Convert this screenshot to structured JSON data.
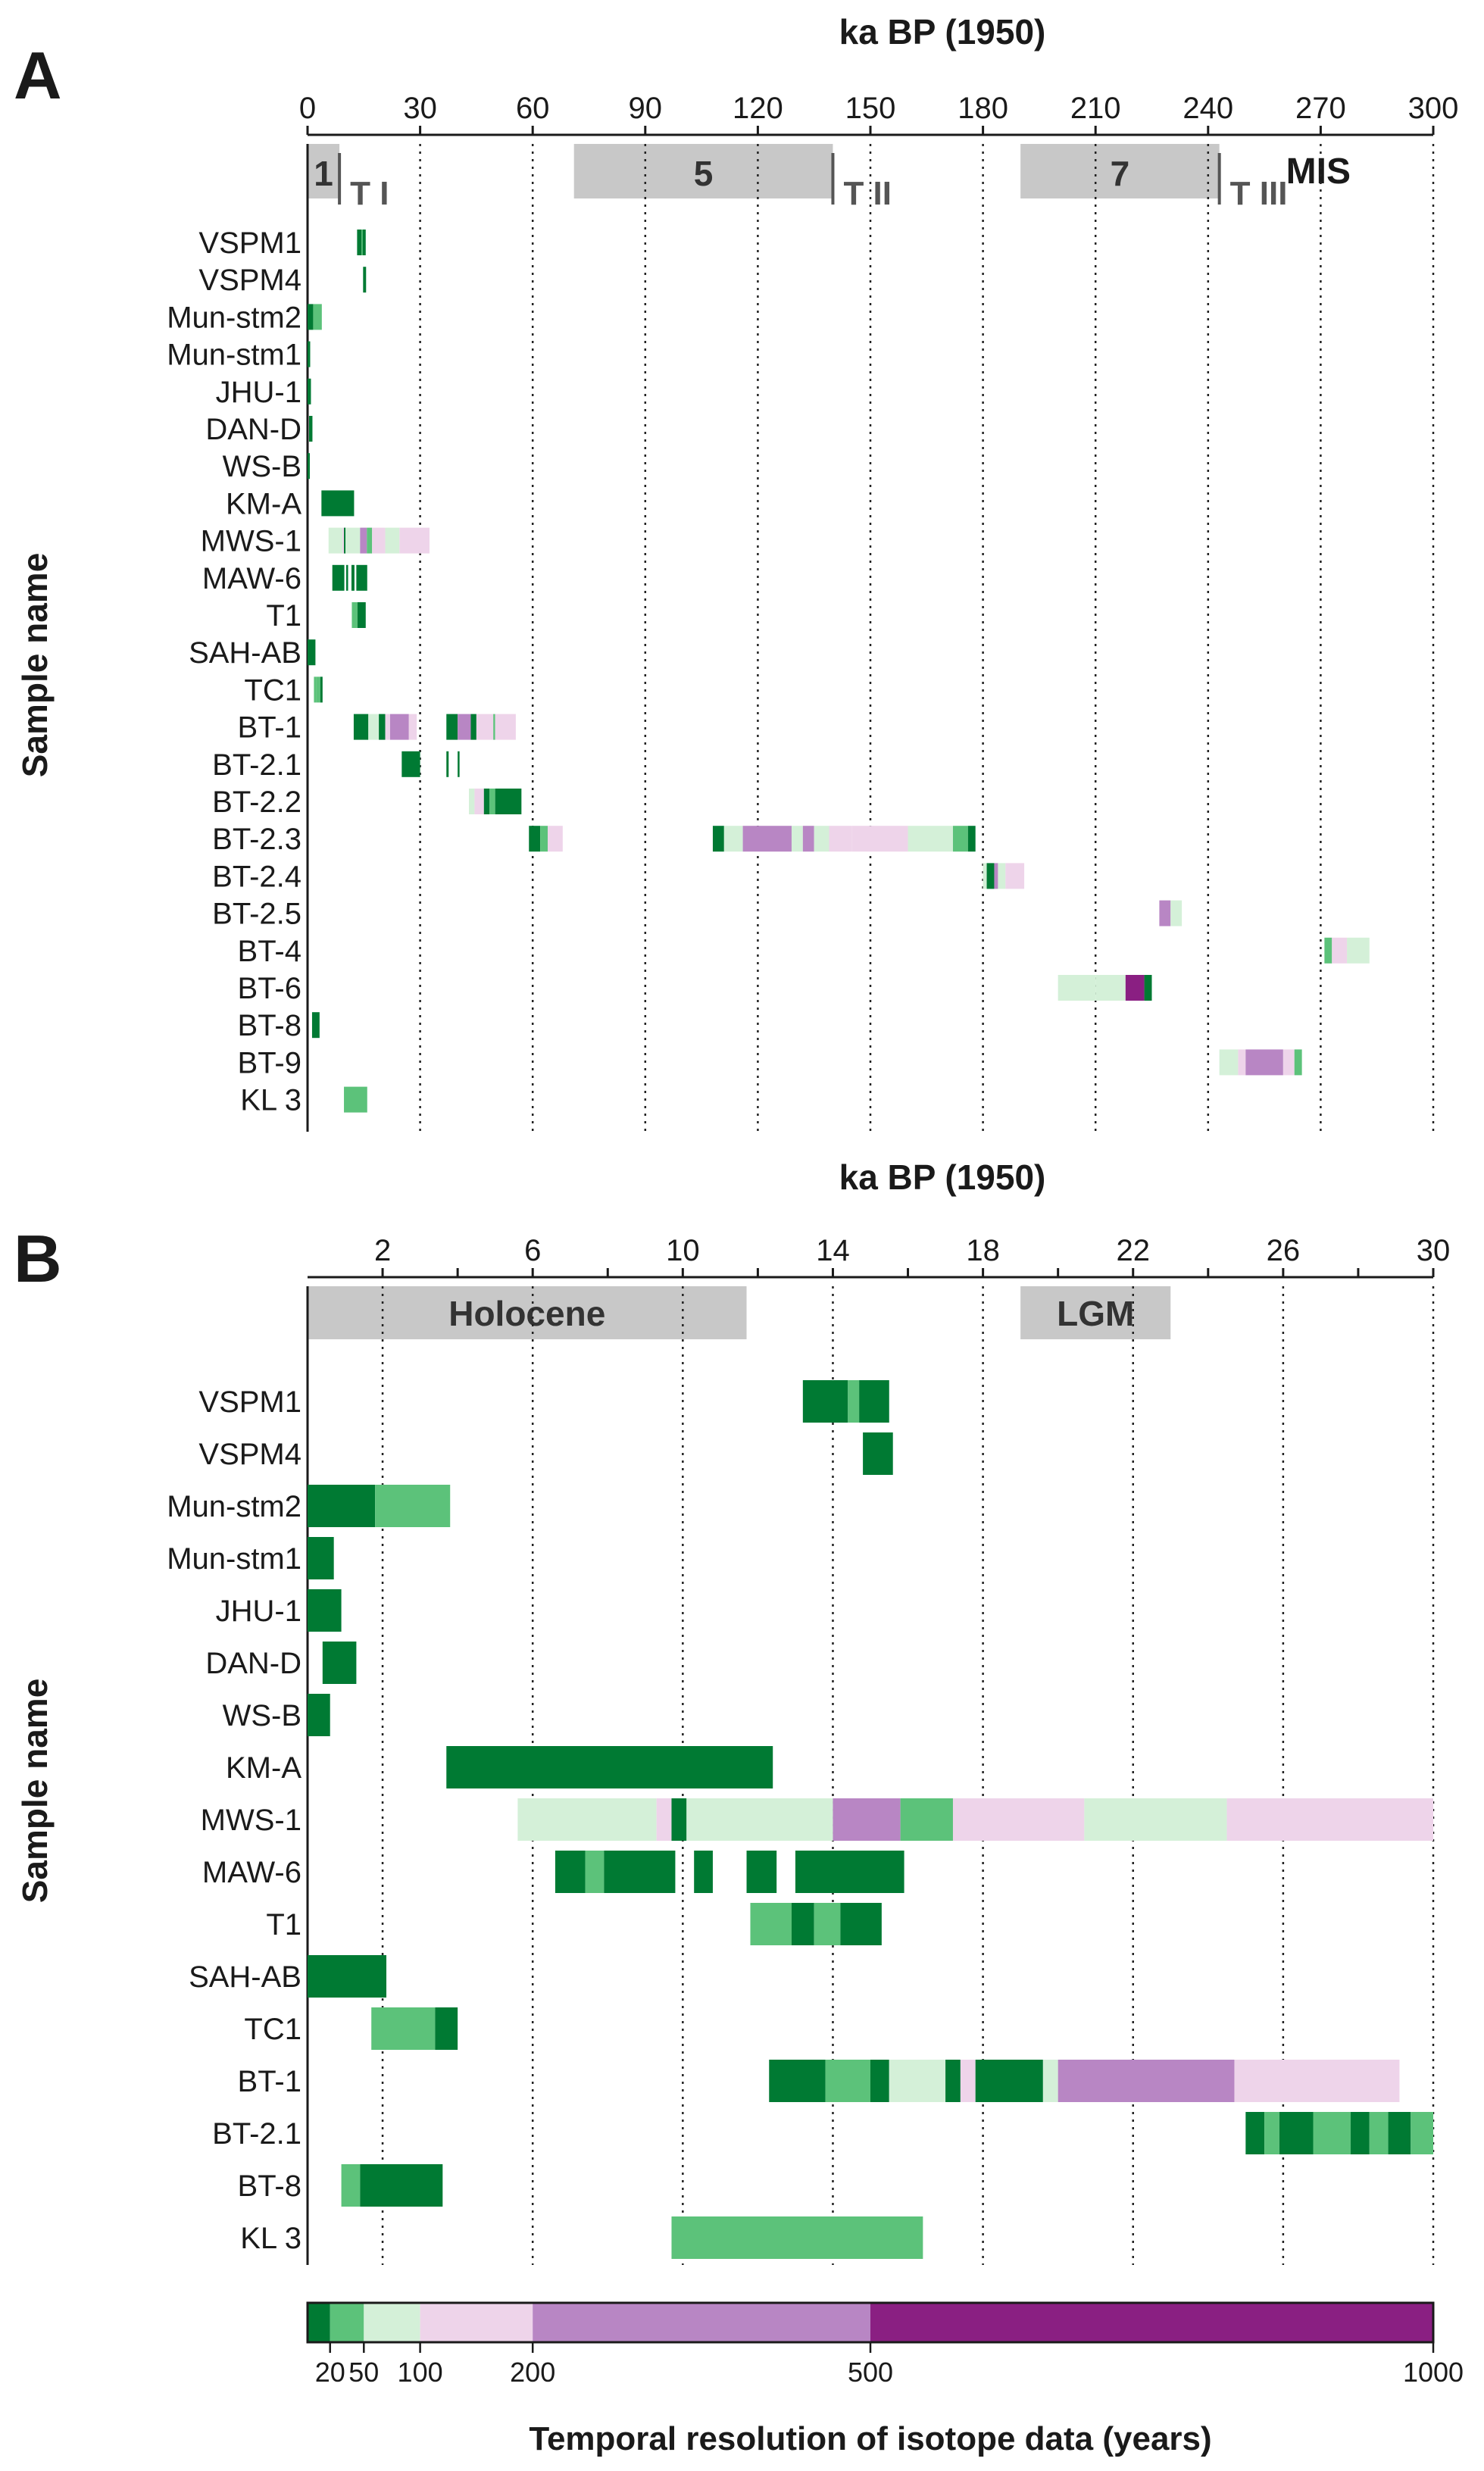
{
  "colors": {
    "r20": "#007a33",
    "r50": "#5cc27a",
    "r100": "#d4f0d8",
    "r200": "#eed4ea",
    "r500": "#b886c4",
    "r1000": "#8a1f82",
    "band": "#c8c8c8",
    "text": "#1a1a1a"
  },
  "chart_data": [
    {
      "panel": "A",
      "type": "timeline",
      "title": "ka BP (1950)",
      "ylabel": "Sample name",
      "xlim": [
        0,
        300
      ],
      "xticks": [
        0,
        30,
        60,
        90,
        120,
        150,
        180,
        210,
        240,
        270,
        300
      ],
      "xtick_labels": [
        "0",
        "30",
        "60",
        "90",
        "120",
        "150",
        "180",
        "210",
        "240",
        "270",
        "300"
      ],
      "gridlines": [
        30,
        60,
        90,
        120,
        150,
        180,
        210,
        240,
        270,
        300
      ],
      "bands": [
        {
          "label": "1",
          "start": 0,
          "end": 8.5
        },
        {
          "label": "5",
          "start": 71,
          "end": 140
        },
        {
          "label": "7",
          "start": 190,
          "end": 243
        }
      ],
      "terminations": [
        {
          "label": "T I",
          "at": 8.5
        },
        {
          "label": "T II",
          "at": 140
        },
        {
          "label": "T III",
          "at": 243
        }
      ],
      "corner_label": "MIS",
      "samples": [
        "VSPM1",
        "VSPM4",
        "Mun-stm2",
        "Mun-stm1",
        "JHU-1",
        "DAN-D",
        "WS-B",
        "KM-A",
        "MWS-1",
        "MAW-6",
        "T1",
        "SAH-AB",
        "TC1",
        "BT-1",
        "BT-2.1",
        "BT-2.2",
        "BT-2.3",
        "BT-2.4",
        "BT-2.5",
        "BT-4",
        "BT-6",
        "BT-8",
        "BT-9",
        "KL 3"
      ],
      "segments": [
        [
          [
            13.2,
            14.4,
            "r20"
          ],
          [
            14.4,
            14.7,
            "r50"
          ],
          [
            14.7,
            15.5,
            "r20"
          ]
        ],
        [
          [
            14.8,
            15.6,
            "r20"
          ]
        ],
        [
          [
            0,
            1.5,
            "r20"
          ],
          [
            1.5,
            3.8,
            "r50"
          ]
        ],
        [
          [
            0,
            0.7,
            "r20"
          ]
        ],
        [
          [
            0,
            0.9,
            "r20"
          ]
        ],
        [
          [
            0.4,
            1.3,
            "r20"
          ]
        ],
        [
          [
            0,
            0.6,
            "r20"
          ]
        ],
        [
          [
            3.7,
            12.4,
            "r20"
          ]
        ],
        [
          [
            5.6,
            9.3,
            "r100"
          ],
          [
            9.3,
            9.7,
            "r200"
          ],
          [
            9.7,
            10.1,
            "r20"
          ],
          [
            10.1,
            14,
            "r100"
          ],
          [
            14,
            15.8,
            "r500"
          ],
          [
            15.8,
            17.2,
            "r50"
          ],
          [
            17.2,
            20.7,
            "r200"
          ],
          [
            20.7,
            24.5,
            "r100"
          ],
          [
            24.5,
            32.5,
            "r200"
          ]
        ],
        [
          [
            6.6,
            9.8,
            "r20"
          ],
          [
            10.3,
            10.8,
            "r20"
          ],
          [
            11.7,
            12.5,
            "r20"
          ],
          [
            13,
            15.9,
            "r20"
          ]
        ],
        [
          [
            11.8,
            13.3,
            "r50"
          ],
          [
            13.3,
            15.5,
            "r20"
          ]
        ],
        [
          [
            0,
            2.1,
            "r20"
          ]
        ],
        [
          [
            1.7,
            2.3,
            "r50"
          ],
          [
            2.3,
            3.4,
            "r50"
          ],
          [
            3.4,
            4,
            "r20"
          ]
        ],
        [
          [
            12.3,
            16.2,
            "r20"
          ],
          [
            16.2,
            19,
            "r100"
          ],
          [
            19,
            20.7,
            "r20"
          ],
          [
            20.7,
            22,
            "r200"
          ],
          [
            22,
            27,
            "r500"
          ],
          [
            27,
            29.1,
            "r200"
          ],
          [
            37,
            40,
            "r20"
          ],
          [
            40,
            43.5,
            "r500"
          ],
          [
            43.5,
            45,
            "r20"
          ],
          [
            45,
            49.5,
            "r200"
          ],
          [
            49.5,
            50,
            "r50"
          ],
          [
            50,
            55.5,
            "r200"
          ]
        ],
        [
          [
            25.1,
            30,
            "r20"
          ],
          [
            37,
            37.6,
            "r20"
          ],
          [
            40,
            40.3,
            "r20"
          ]
        ],
        [
          [
            43,
            44.5,
            "r100"
          ],
          [
            44.5,
            47,
            "r200"
          ],
          [
            47,
            48.5,
            "r20"
          ],
          [
            48.5,
            50,
            "r50"
          ],
          [
            50,
            57,
            "r20"
          ]
        ],
        [
          [
            59,
            62,
            "r20"
          ],
          [
            62,
            64,
            "r50"
          ],
          [
            64,
            68,
            "r200"
          ],
          [
            108,
            111,
            "r20"
          ],
          [
            111,
            116,
            "r100"
          ],
          [
            116,
            129,
            "r500"
          ],
          [
            129,
            132,
            "r100"
          ],
          [
            132,
            135,
            "r500"
          ],
          [
            135,
            139,
            "r100"
          ],
          [
            139,
            145,
            "r200"
          ],
          [
            145,
            160,
            "r200"
          ],
          [
            160,
            172,
            "r100"
          ],
          [
            172,
            176,
            "r50"
          ],
          [
            176,
            178,
            "r20"
          ]
        ],
        [
          [
            180,
            181,
            "r100"
          ],
          [
            181,
            183,
            "r20"
          ],
          [
            183,
            184,
            "r500"
          ],
          [
            184,
            186,
            "r100"
          ],
          [
            186,
            191,
            "r200"
          ]
        ],
        [
          [
            227,
            230,
            "r500"
          ],
          [
            230,
            233,
            "r100"
          ]
        ],
        [
          [
            271,
            273,
            "r50"
          ],
          [
            273,
            277,
            "r200"
          ],
          [
            277,
            283,
            "r100"
          ]
        ],
        [
          [
            200,
            210,
            "r100"
          ],
          [
            210,
            218,
            "r100"
          ],
          [
            218,
            223,
            "r1000"
          ],
          [
            223,
            225,
            "r20"
          ]
        ],
        [
          [
            1.2,
            3.2,
            "r20"
          ]
        ],
        [
          [
            243,
            248,
            "r100"
          ],
          [
            248,
            250,
            "r200"
          ],
          [
            250,
            260,
            "r500"
          ],
          [
            260,
            263,
            "r200"
          ],
          [
            263,
            265,
            "r50"
          ]
        ],
        [
          [
            9.7,
            15.9,
            "r50"
          ]
        ]
      ]
    },
    {
      "panel": "B",
      "type": "timeline",
      "title": "ka BP (1950)",
      "ylabel": "Sample name",
      "xlim": [
        0,
        30
      ],
      "xticks": [
        2,
        4,
        6,
        8,
        10,
        12,
        14,
        16,
        18,
        20,
        22,
        24,
        26,
        28,
        30
      ],
      "xtick_labels": [
        "2",
        "",
        "6",
        "",
        "10",
        "",
        "14",
        "",
        "18",
        "",
        "22",
        "",
        "26",
        "",
        "30"
      ],
      "gridlines": [
        2,
        6,
        10,
        14,
        18,
        22,
        26,
        30
      ],
      "bands": [
        {
          "label": "Holocene",
          "start": 0,
          "end": 11.7
        },
        {
          "label": "LGM",
          "start": 19,
          "end": 23
        }
      ],
      "samples": [
        "VSPM1",
        "VSPM4",
        "Mun-stm2",
        "Mun-stm1",
        "JHU-1",
        "DAN-D",
        "WS-B",
        "KM-A",
        "MWS-1",
        "MAW-6",
        "T1",
        "SAH-AB",
        "TC1",
        "BT-1",
        "BT-2.1",
        "BT-8",
        "KL 3"
      ],
      "segments": [
        [
          [
            13.2,
            14.4,
            "r20"
          ],
          [
            14.4,
            14.7,
            "r50"
          ],
          [
            14.7,
            15.5,
            "r20"
          ]
        ],
        [
          [
            14.8,
            15.6,
            "r20"
          ]
        ],
        [
          [
            0,
            1.8,
            "r20"
          ],
          [
            1.8,
            3.8,
            "r50"
          ]
        ],
        [
          [
            0,
            0.7,
            "r20"
          ]
        ],
        [
          [
            0,
            0.9,
            "r20"
          ]
        ],
        [
          [
            0.4,
            1.3,
            "r20"
          ]
        ],
        [
          [
            0,
            0.6,
            "r20"
          ]
        ],
        [
          [
            3.7,
            12.4,
            "r20"
          ]
        ],
        [
          [
            5.6,
            9.3,
            "r100"
          ],
          [
            9.3,
            9.7,
            "r200"
          ],
          [
            9.7,
            10.1,
            "r20"
          ],
          [
            10.1,
            14,
            "r100"
          ],
          [
            14,
            15.8,
            "r500"
          ],
          [
            15.8,
            17.2,
            "r50"
          ],
          [
            17.2,
            20.7,
            "r200"
          ],
          [
            20.7,
            24.5,
            "r100"
          ],
          [
            24.5,
            30,
            "r200"
          ]
        ],
        [
          [
            6.6,
            7.4,
            "r20"
          ],
          [
            7.4,
            7.9,
            "r50"
          ],
          [
            7.9,
            9.8,
            "r20"
          ],
          [
            10.3,
            10.8,
            "r20"
          ],
          [
            11.7,
            12.5,
            "r20"
          ],
          [
            13,
            15.9,
            "r20"
          ]
        ],
        [
          [
            11.8,
            12.9,
            "r50"
          ],
          [
            12.9,
            13.5,
            "r20"
          ],
          [
            13.5,
            14.2,
            "r50"
          ],
          [
            14.2,
            15.3,
            "r20"
          ]
        ],
        [
          [
            0,
            2.1,
            "r20"
          ]
        ],
        [
          [
            1.7,
            3.4,
            "r50"
          ],
          [
            3.4,
            4,
            "r20"
          ]
        ],
        [
          [
            12.3,
            13.8,
            "r20"
          ],
          [
            13.8,
            15,
            "r50"
          ],
          [
            15,
            15.5,
            "r20"
          ],
          [
            15.5,
            17,
            "r100"
          ],
          [
            17,
            17.4,
            "r20"
          ],
          [
            17.4,
            17.8,
            "r200"
          ],
          [
            17.8,
            19.6,
            "r20"
          ],
          [
            19.6,
            20,
            "r100"
          ],
          [
            20,
            24.7,
            "r500"
          ],
          [
            24.7,
            29.1,
            "r200"
          ]
        ],
        [
          [
            25,
            25.5,
            "r20"
          ],
          [
            25.5,
            25.9,
            "r50"
          ],
          [
            25.9,
            26.8,
            "r20"
          ],
          [
            26.8,
            27.8,
            "r50"
          ],
          [
            27.8,
            28.3,
            "r20"
          ],
          [
            28.3,
            28.8,
            "r50"
          ],
          [
            28.8,
            29.4,
            "r20"
          ],
          [
            29.4,
            30,
            "r50"
          ]
        ],
        [
          [
            0.9,
            1.4,
            "r50"
          ],
          [
            1.4,
            3.6,
            "r20"
          ]
        ],
        [
          [
            9.7,
            16.4,
            "r50"
          ]
        ]
      ]
    }
  ],
  "colorbar": {
    "title": "Temporal resolution of isotope data (years)",
    "breaks": [
      0,
      20,
      50,
      100,
      200,
      500,
      1000
    ],
    "labels": [
      "20",
      "50",
      "100",
      "200",
      "500",
      "1000"
    ],
    "classes": [
      "r20",
      "r50",
      "r100",
      "r200",
      "r500",
      "r1000"
    ]
  }
}
